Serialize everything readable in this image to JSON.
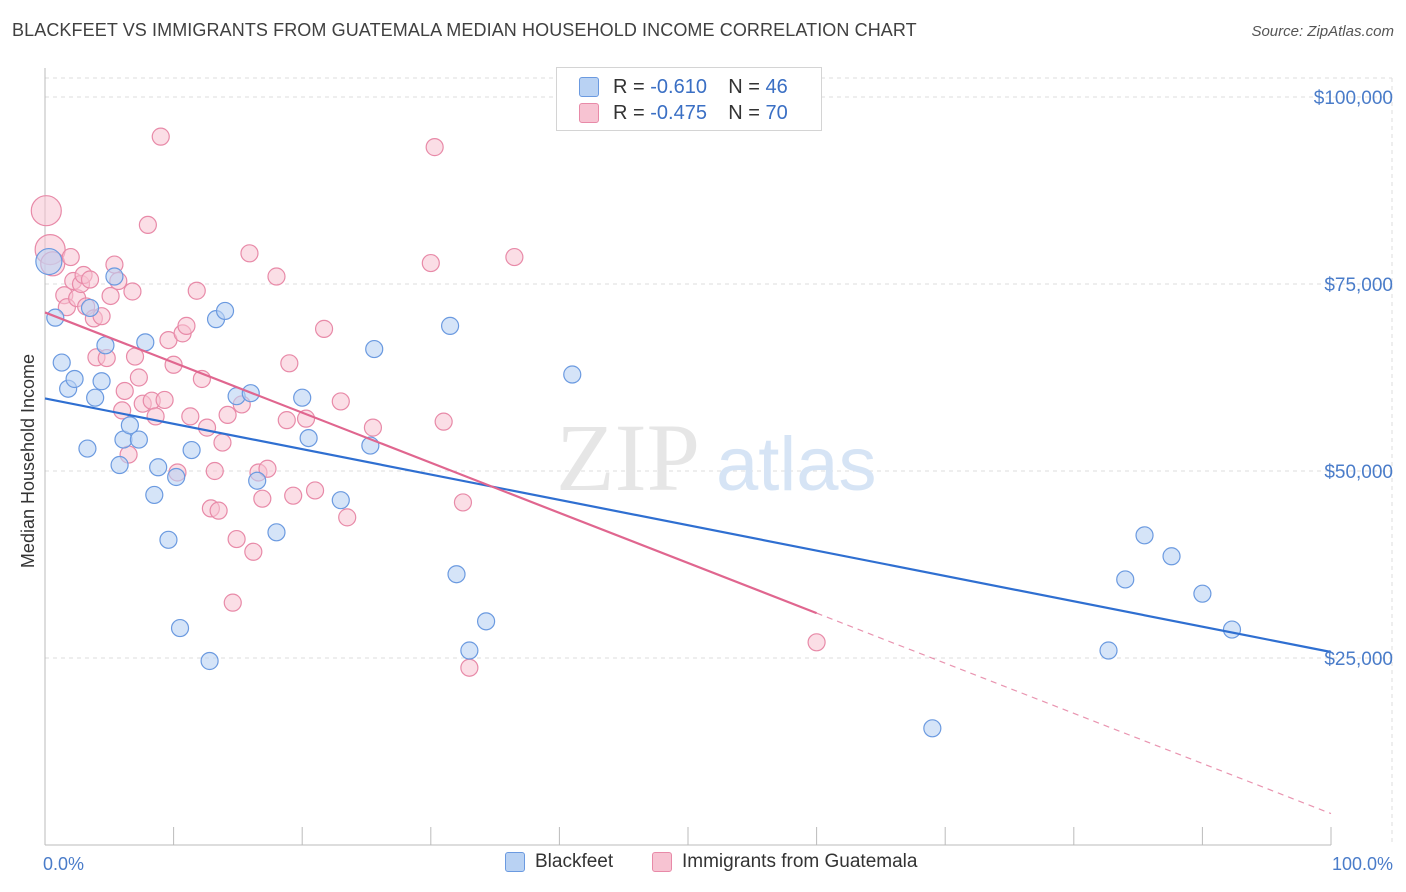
{
  "title": "BLACKFEET VS IMMIGRANTS FROM GUATEMALA MEDIAN HOUSEHOLD INCOME CORRELATION CHART",
  "source": "Source: ZipAtlas.com",
  "watermark": {
    "zip": "ZIP",
    "atlas": "atlas"
  },
  "legend": {
    "r_label": "R =",
    "n_label": "N =",
    "rows": [
      {
        "r": "-0.610",
        "n": "46"
      },
      {
        "r": "-0.475",
        "n": "70"
      }
    ]
  },
  "colors": {
    "blackfeet_fill": "#b9d2f3",
    "blackfeet_stroke": "#6b9ae0",
    "blackfeet_line": "#2f6fd1",
    "guatemala_fill": "#f7c3d2",
    "guatemala_stroke": "#e88aa8",
    "guatemala_line": "#e0668f",
    "axis_text": "#4a7cc9",
    "grid": "#dddddd"
  },
  "bottom_legend": [
    "Blackfeet",
    "Immigrants from Guatemala"
  ],
  "chart_data": {
    "type": "scatter",
    "title": "BLACKFEET VS IMMIGRANTS FROM GUATEMALA MEDIAN HOUSEHOLD INCOME CORRELATION CHART",
    "xlabel": "",
    "ylabel": "Median Household Income",
    "x_tick_labels": [
      "0.0%",
      "100.0%"
    ],
    "y_tick_labels": [
      "$25,000",
      "$50,000",
      "$75,000",
      "$100,000"
    ],
    "y_ticks": [
      25000,
      50000,
      75000,
      100000
    ],
    "xlim": [
      0,
      100
    ],
    "ylim": [
      0,
      102000
    ],
    "grid": true,
    "legend_position": "top-center",
    "series": [
      {
        "name": "Blackfeet",
        "R": -0.61,
        "N": 46,
        "trend": {
          "x": [
            0,
            100
          ],
          "y": [
            59700,
            25800
          ]
        },
        "points": [
          [
            0.3,
            78000
          ],
          [
            0.8,
            70500
          ],
          [
            1.3,
            64500
          ],
          [
            1.8,
            61000
          ],
          [
            2.3,
            62300
          ],
          [
            3.3,
            53000
          ],
          [
            3.5,
            71800
          ],
          [
            3.9,
            59800
          ],
          [
            4.4,
            62000
          ],
          [
            4.7,
            66800
          ],
          [
            5.4,
            76000
          ],
          [
            5.8,
            50800
          ],
          [
            6.1,
            54200
          ],
          [
            6.6,
            56100
          ],
          [
            7.3,
            54200
          ],
          [
            7.8,
            67200
          ],
          [
            8.5,
            46800
          ],
          [
            8.8,
            50500
          ],
          [
            9.6,
            40800
          ],
          [
            10.2,
            49200
          ],
          [
            10.5,
            29000
          ],
          [
            11.4,
            52800
          ],
          [
            12.8,
            24600
          ],
          [
            13.3,
            70300
          ],
          [
            14.0,
            71400
          ],
          [
            14.9,
            60000
          ],
          [
            16.0,
            60400
          ],
          [
            16.5,
            48700
          ],
          [
            18.0,
            41800
          ],
          [
            20.0,
            59800
          ],
          [
            20.5,
            54400
          ],
          [
            23.0,
            46100
          ],
          [
            25.3,
            53400
          ],
          [
            25.6,
            66300
          ],
          [
            31.5,
            69400
          ],
          [
            32.0,
            36200
          ],
          [
            33.0,
            26000
          ],
          [
            34.3,
            29900
          ],
          [
            41.0,
            62900
          ],
          [
            69.0,
            15600
          ],
          [
            82.7,
            26000
          ],
          [
            84.0,
            35500
          ],
          [
            85.5,
            41400
          ],
          [
            87.6,
            38600
          ],
          [
            90.0,
            33600
          ],
          [
            92.3,
            28800
          ]
        ]
      },
      {
        "name": "Immigrants from Guatemala",
        "R": -0.475,
        "N": 70,
        "trend": {
          "x": [
            0,
            60
          ],
          "y": [
            71200,
            31000
          ],
          "dashed_x": [
            60,
            100
          ],
          "dashed_y": [
            31000,
            4200
          ]
        },
        "points": [
          [
            0.1,
            84800
          ],
          [
            0.4,
            79600
          ],
          [
            0.6,
            77700
          ],
          [
            1.5,
            73500
          ],
          [
            1.7,
            71900
          ],
          [
            2.0,
            78600
          ],
          [
            2.2,
            75400
          ],
          [
            2.5,
            73100
          ],
          [
            2.8,
            75000
          ],
          [
            3.0,
            76200
          ],
          [
            3.2,
            72000
          ],
          [
            3.5,
            75600
          ],
          [
            3.8,
            70400
          ],
          [
            4.0,
            65200
          ],
          [
            4.4,
            70700
          ],
          [
            4.8,
            65100
          ],
          [
            5.1,
            73400
          ],
          [
            5.4,
            77600
          ],
          [
            5.7,
            75400
          ],
          [
            6.0,
            58100
          ],
          [
            6.2,
            60700
          ],
          [
            6.5,
            52200
          ],
          [
            6.8,
            74000
          ],
          [
            7.0,
            65300
          ],
          [
            7.3,
            62500
          ],
          [
            7.6,
            59000
          ],
          [
            8.0,
            82900
          ],
          [
            8.3,
            59400
          ],
          [
            8.6,
            57300
          ],
          [
            9.0,
            94700
          ],
          [
            9.3,
            59500
          ],
          [
            9.6,
            67500
          ],
          [
            10.0,
            64200
          ],
          [
            10.3,
            49800
          ],
          [
            10.7,
            68400
          ],
          [
            11.0,
            69400
          ],
          [
            11.3,
            57300
          ],
          [
            11.8,
            74100
          ],
          [
            12.2,
            62300
          ],
          [
            12.6,
            55800
          ],
          [
            12.9,
            45000
          ],
          [
            13.2,
            50000
          ],
          [
            13.5,
            44700
          ],
          [
            13.8,
            53800
          ],
          [
            14.2,
            57500
          ],
          [
            14.6,
            32400
          ],
          [
            14.9,
            40900
          ],
          [
            15.3,
            58900
          ],
          [
            15.9,
            79100
          ],
          [
            16.2,
            39200
          ],
          [
            16.6,
            49800
          ],
          [
            16.9,
            46300
          ],
          [
            17.3,
            50300
          ],
          [
            18.0,
            76000
          ],
          [
            19.0,
            64400
          ],
          [
            19.3,
            46700
          ],
          [
            20.3,
            57000
          ],
          [
            21.0,
            47400
          ],
          [
            21.7,
            69000
          ],
          [
            23.0,
            59300
          ],
          [
            23.5,
            43800
          ],
          [
            25.5,
            55800
          ],
          [
            30.0,
            77800
          ],
          [
            30.3,
            93300
          ],
          [
            31.0,
            56600
          ],
          [
            32.5,
            45800
          ],
          [
            33.0,
            23700
          ],
          [
            36.5,
            78600
          ],
          [
            60.0,
            27100
          ],
          [
            18.8,
            56800
          ]
        ]
      }
    ]
  }
}
